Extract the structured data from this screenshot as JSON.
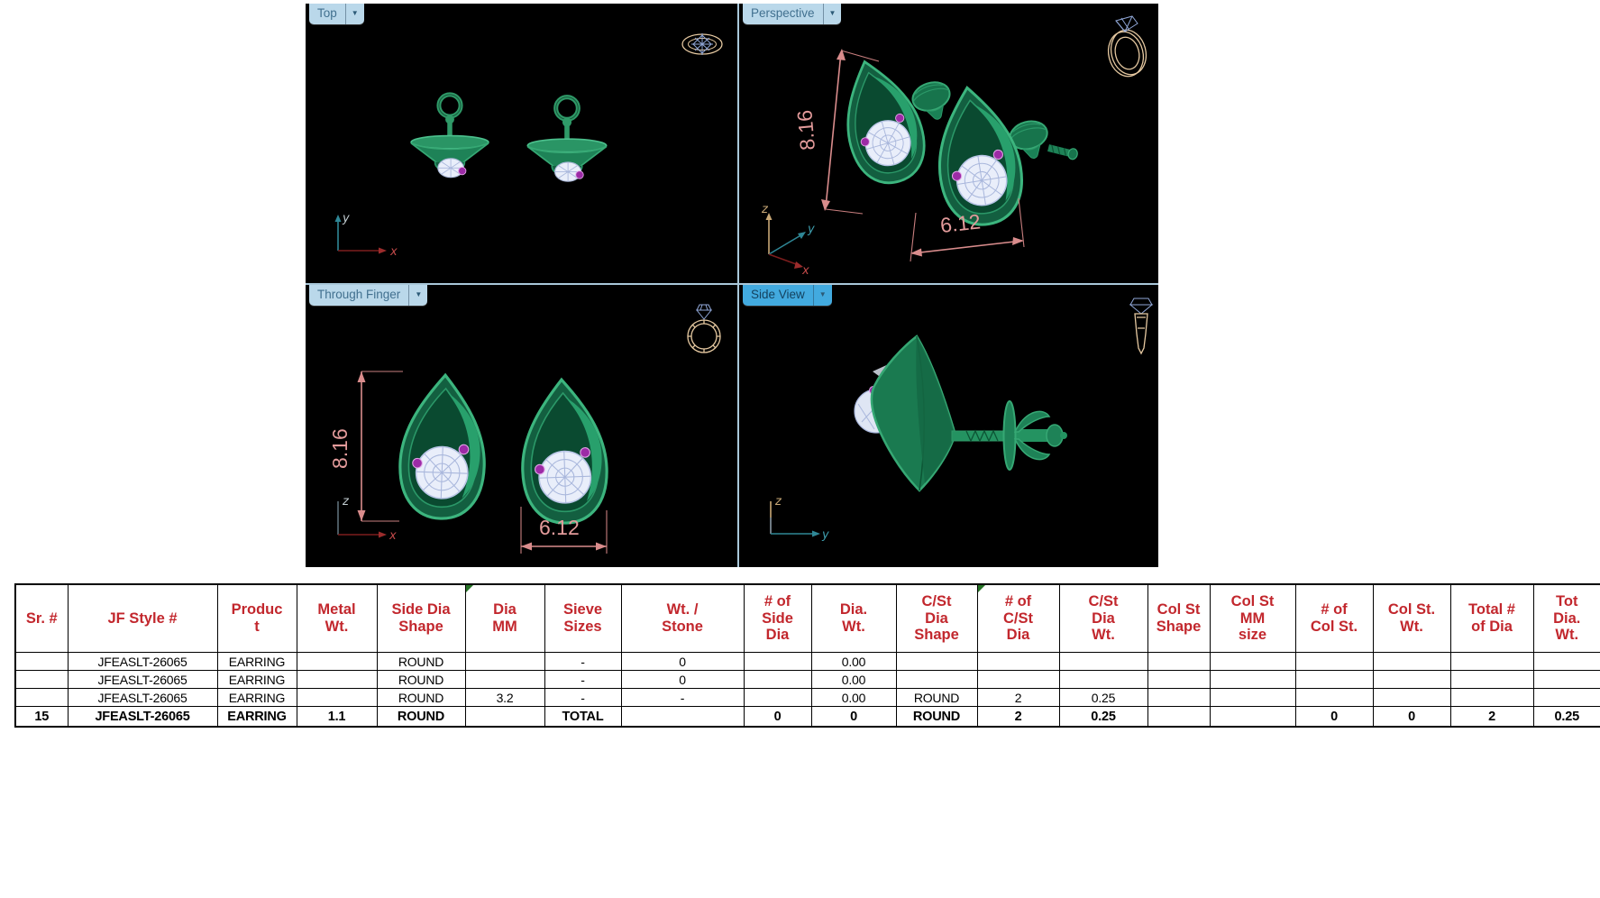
{
  "viewports": {
    "top": {
      "label": "Top"
    },
    "perspective": {
      "label": "Perspective",
      "dim_height": "8.16",
      "dim_width": "6.12"
    },
    "through_finger": {
      "label": "Through Finger",
      "dim_height": "8.16",
      "dim_width": "6.12"
    },
    "side": {
      "label": "Side View"
    }
  },
  "axes": {
    "x": "x",
    "y": "y",
    "z": "z"
  },
  "table": {
    "headers": [
      "Sr. #",
      "JF Style #",
      "Produc\nt",
      "Metal\nWt.",
      "Side Dia\nShape",
      "Dia\nMM",
      "Sieve\nSizes",
      "Wt. /\nStone",
      "# of\nSide\nDia",
      "Dia.\nWt.",
      "C/St\nDia\nShape",
      "# of\nC/St\nDia",
      "C/St\nDia\nWt.",
      "Col St\nShape",
      "Col St\nMM\nsize",
      "# of\nCol St.",
      "Col St.\nWt.",
      "Total #\nof Dia",
      "Tot\nDia.\nWt."
    ],
    "rows": [
      [
        "",
        "JFEASLT-26065",
        "EARRING",
        "",
        "ROUND",
        "",
        "-",
        "0",
        "",
        "0.00",
        "",
        "",
        "",
        "",
        "",
        "",
        "",
        "",
        ""
      ],
      [
        "",
        "JFEASLT-26065",
        "EARRING",
        "",
        "ROUND",
        "",
        "-",
        "0",
        "",
        "0.00",
        "",
        "",
        "",
        "",
        "",
        "",
        "",
        "",
        ""
      ],
      [
        "",
        "JFEASLT-26065",
        "EARRING",
        "",
        "ROUND",
        "3.2",
        "-",
        "-",
        "",
        "0.00",
        "ROUND",
        "2",
        "0.25",
        "",
        "",
        "",
        "",
        "",
        ""
      ],
      [
        "15",
        "JFEASLT-26065",
        "EARRING",
        "1.1",
        "ROUND",
        "",
        "TOTAL",
        "",
        "0",
        "0",
        "ROUND",
        "2",
        "0.25",
        "",
        "",
        "0",
        "0",
        "2",
        "0.25"
      ]
    ]
  },
  "colors": {
    "header_text": "#c2272d",
    "dimension": "#e39b9b",
    "viewport_bg": "#000000",
    "active_tab": "#42aadf",
    "inactive_tab": "#bad8ea",
    "earring_green": "#1e8257",
    "cluster_pave": "#e9eefa",
    "accent_purple": "#9c2ba6",
    "comment_flag_green": "#267326"
  }
}
